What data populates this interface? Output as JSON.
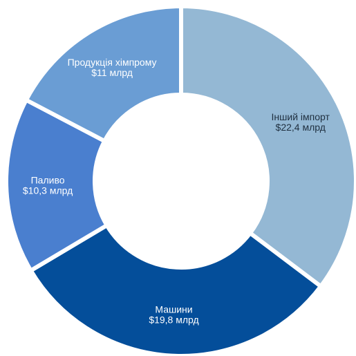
{
  "chart_data": {
    "type": "pie",
    "donut": true,
    "categories": [
      "Інший імпорт",
      "Машини",
      "Паливо",
      "Продукція хімпрому"
    ],
    "values": [
      22.4,
      19.8,
      10.3,
      11
    ],
    "value_labels": [
      "$22,4 млрд",
      "$19,8 млрд",
      "$10,3 млрд",
      "$11 млрд"
    ],
    "colors": [
      "#94b8d4",
      "#044e9a",
      "#4a7fcf",
      "#6a9dd4"
    ],
    "label_colors": [
      "#1f2f3f",
      "#ffffff",
      "#ffffff",
      "#ffffff"
    ]
  }
}
